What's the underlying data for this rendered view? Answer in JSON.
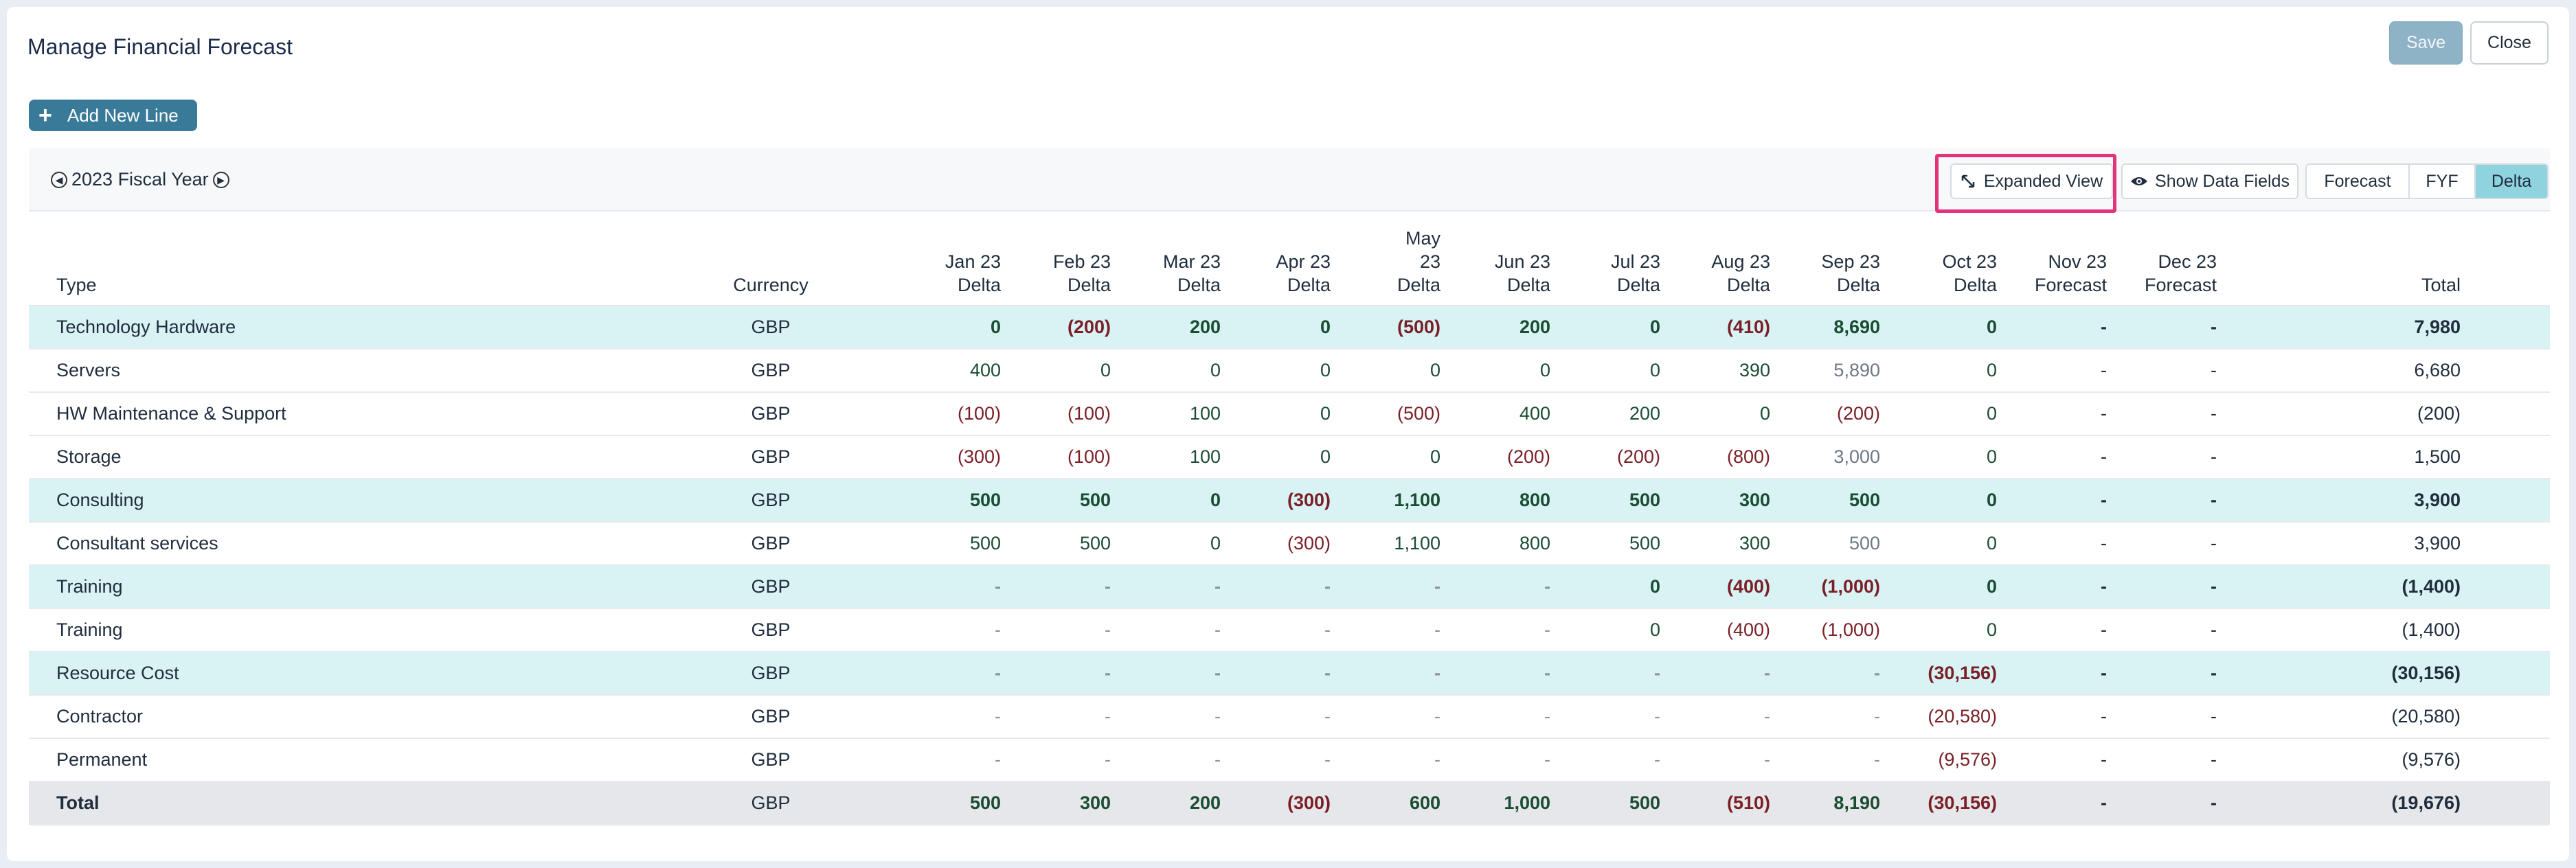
{
  "header": {
    "title": "Manage Financial Forecast",
    "save_label": "Save",
    "close_label": "Close"
  },
  "actions": {
    "add_line_label": "Add New Line"
  },
  "toolbar": {
    "fiscal_year": "2023 Fiscal Year",
    "expanded_view_label": "Expanded View",
    "show_data_fields_label": "Show Data Fields",
    "view_toggle": [
      "Forecast",
      "FYF",
      "Delta"
    ],
    "active_view": "Delta"
  },
  "table": {
    "type_header": "Type",
    "currency_header": "Currency",
    "columns": [
      [
        "Jan 23",
        "Delta"
      ],
      [
        "Feb 23",
        "Delta"
      ],
      [
        "Mar 23",
        "Delta"
      ],
      [
        "Apr 23",
        "Delta"
      ],
      [
        "May",
        "23",
        "Delta"
      ],
      [
        "Jun 23",
        "Delta"
      ],
      [
        "Jul 23",
        "Delta"
      ],
      [
        "Aug 23",
        "Delta"
      ],
      [
        "Sep 23",
        "Delta"
      ],
      [
        "Oct 23",
        "Delta"
      ],
      [
        "Nov 23",
        "Forecast"
      ],
      [
        "Dec 23",
        "Forecast"
      ]
    ],
    "total_header": "Total",
    "rows": [
      {
        "type": "Technology Hardware",
        "kind": "group",
        "currency": "GBP",
        "values": [
          "0",
          "(200)",
          "200",
          "0",
          "(500)",
          "200",
          "0",
          "(410)",
          "8,690",
          "0",
          "-",
          "-"
        ],
        "total": "7,980"
      },
      {
        "type": "Servers",
        "kind": "item",
        "currency": "GBP",
        "values": [
          "400",
          "0",
          "0",
          "0",
          "0",
          "0",
          "0",
          "390",
          "5,890",
          "0",
          "-",
          "-"
        ],
        "total": "6,680"
      },
      {
        "type": "HW Maintenance & Support",
        "kind": "item",
        "currency": "GBP",
        "values": [
          "(100)",
          "(100)",
          "100",
          "0",
          "(500)",
          "400",
          "200",
          "0",
          "(200)",
          "0",
          "-",
          "-"
        ],
        "total": "(200)"
      },
      {
        "type": "Storage",
        "kind": "item",
        "currency": "GBP",
        "values": [
          "(300)",
          "(100)",
          "100",
          "0",
          "0",
          "(200)",
          "(200)",
          "(800)",
          "3,000",
          "0",
          "-",
          "-"
        ],
        "total": "1,500"
      },
      {
        "type": "Consulting",
        "kind": "group",
        "currency": "GBP",
        "values": [
          "500",
          "500",
          "0",
          "(300)",
          "1,100",
          "800",
          "500",
          "300",
          "500",
          "0",
          "-",
          "-"
        ],
        "total": "3,900"
      },
      {
        "type": "Consultant services",
        "kind": "item",
        "currency": "GBP",
        "values": [
          "500",
          "500",
          "0",
          "(300)",
          "1,100",
          "800",
          "500",
          "300",
          "500",
          "0",
          "-",
          "-"
        ],
        "total": "3,900"
      },
      {
        "type": "Training",
        "kind": "group",
        "currency": "GBP",
        "values": [
          "-",
          "-",
          "-",
          "-",
          "-",
          "-",
          "0",
          "(400)",
          "(1,000)",
          "0",
          "-",
          "-"
        ],
        "total": "(1,400)"
      },
      {
        "type": "Training",
        "kind": "item",
        "currency": "GBP",
        "values": [
          "-",
          "-",
          "-",
          "-",
          "-",
          "-",
          "0",
          "(400)",
          "(1,000)",
          "0",
          "-",
          "-"
        ],
        "total": "(1,400)"
      },
      {
        "type": "Resource Cost",
        "kind": "group",
        "currency": "GBP",
        "values": [
          "-",
          "-",
          "-",
          "-",
          "-",
          "-",
          "-",
          "-",
          "-",
          "(30,156)",
          "-",
          "-"
        ],
        "total": "(30,156)"
      },
      {
        "type": "Contractor",
        "kind": "item",
        "currency": "GBP",
        "values": [
          "-",
          "-",
          "-",
          "-",
          "-",
          "-",
          "-",
          "-",
          "-",
          "(20,580)",
          "-",
          "-"
        ],
        "total": "(20,580)"
      },
      {
        "type": "Permanent",
        "kind": "item",
        "currency": "GBP",
        "values": [
          "-",
          "-",
          "-",
          "-",
          "-",
          "-",
          "-",
          "-",
          "-",
          "(9,576)",
          "-",
          "-"
        ],
        "total": "(9,576)"
      },
      {
        "type": "Total",
        "kind": "total",
        "currency": "GBP",
        "values": [
          "500",
          "300",
          "200",
          "(300)",
          "600",
          "1,000",
          "500",
          "(510)",
          "8,190",
          "(30,156)",
          "-",
          "-"
        ],
        "total": "(19,676)"
      }
    ]
  },
  "colors": {
    "positive": "#1b4d33",
    "negative": "#7a1f26",
    "group_row": "#d9f3f5",
    "total_row": "#e6e7ea",
    "highlight": "#e3337a",
    "accent": "#3a7a99"
  }
}
